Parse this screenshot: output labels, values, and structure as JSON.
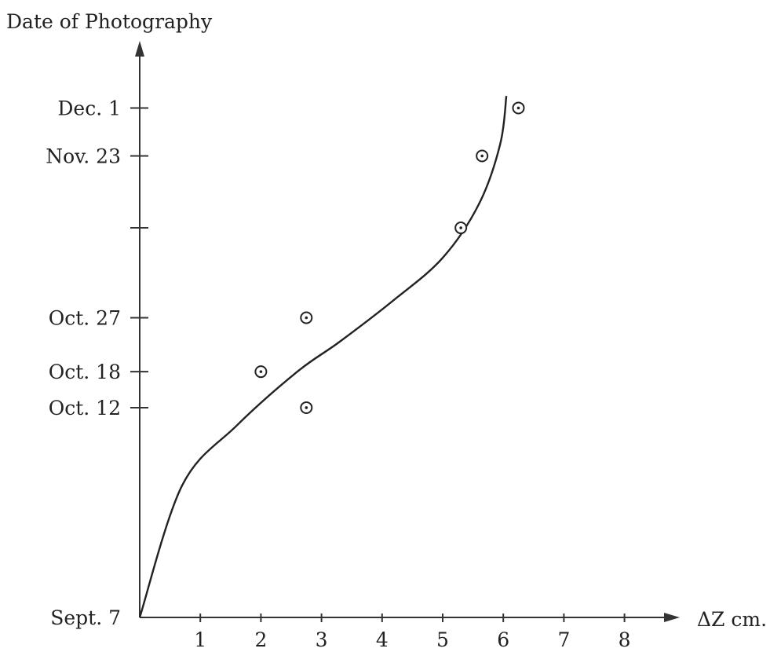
{
  "chart_data": {
    "type": "scatter",
    "ylabel": "Date of Photography",
    "xlabel": "ΔZ cm.",
    "xlim": [
      0,
      8.6
    ],
    "x_ticks": [
      1,
      2,
      3,
      4,
      5,
      6,
      7,
      8
    ],
    "y_ticks": [
      {
        "date": "1900-09-07",
        "label": "Sept. 7"
      },
      {
        "date": "1900-10-12",
        "label": "Oct. 12"
      },
      {
        "date": "1900-10-18",
        "label": "Oct. 18"
      },
      {
        "date": "1900-10-27",
        "label": "Oct. 27"
      },
      {
        "date": "1900-11-11",
        "label": ""
      },
      {
        "date": "1900-11-23",
        "label": "Nov. 23"
      },
      {
        "date": "1900-12-01",
        "label": "Dec. 1"
      }
    ],
    "points": [
      {
        "x": 2.0,
        "y": "1900-10-18"
      },
      {
        "x": 2.75,
        "y": "1900-10-12"
      },
      {
        "x": 2.75,
        "y": "1900-10-27"
      },
      {
        "x": 5.3,
        "y": "1900-11-11"
      },
      {
        "x": 5.65,
        "y": "1900-11-23"
      },
      {
        "x": 6.25,
        "y": "1900-12-01"
      }
    ],
    "fit_curve": [
      {
        "x": 0.0,
        "y": "1900-09-07"
      },
      {
        "x": 0.7,
        "y": "1900-09-29"
      },
      {
        "x": 1.6,
        "y": "1900-10-09"
      },
      {
        "x": 2.6,
        "y": "1900-10-18"
      },
      {
        "x": 3.3,
        "y": "1900-10-23"
      },
      {
        "x": 4.2,
        "y": "1900-10-30"
      },
      {
        "x": 5.0,
        "y": "1900-11-06"
      },
      {
        "x": 5.6,
        "y": "1900-11-15"
      },
      {
        "x": 5.95,
        "y": "1900-11-25"
      },
      {
        "x": 6.05,
        "y": "1900-12-03"
      }
    ]
  }
}
